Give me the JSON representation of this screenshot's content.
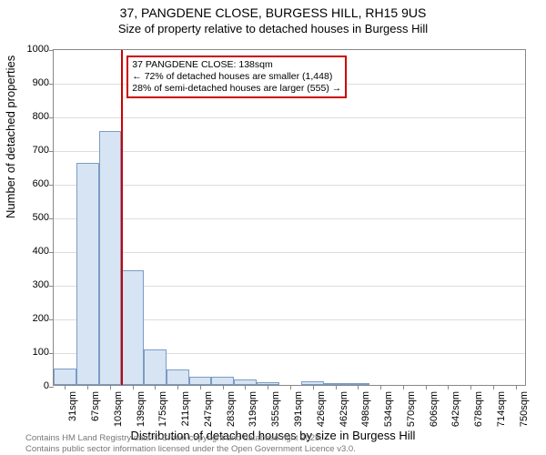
{
  "title": {
    "line1": "37, PANGDENE CLOSE, BURGESS HILL, RH15 9US",
    "line2": "Size of property relative to detached houses in Burgess Hill"
  },
  "chart": {
    "type": "histogram",
    "x_categories": [
      "31sqm",
      "67sqm",
      "103sqm",
      "139sqm",
      "175sqm",
      "211sqm",
      "247sqm",
      "283sqm",
      "319sqm",
      "355sqm",
      "391sqm",
      "426sqm",
      "462sqm",
      "498sqm",
      "534sqm",
      "570sqm",
      "606sqm",
      "642sqm",
      "678sqm",
      "714sqm",
      "750sqm"
    ],
    "bar_values": [
      50,
      660,
      755,
      340,
      105,
      45,
      25,
      25,
      15,
      8,
      0,
      10,
      3,
      5,
      0,
      0,
      2,
      0,
      0,
      0,
      0
    ],
    "y_ticks": [
      0,
      100,
      200,
      300,
      400,
      500,
      600,
      700,
      800,
      900,
      1000
    ],
    "ylim": [
      0,
      1000
    ],
    "bar_fill": "#d7e4f4",
    "bar_stroke": "#7a9cc6",
    "grid_color": "#dddddd",
    "axis_color": "#888888",
    "background_color": "#ffffff",
    "bar_width_ratio": 1.0,
    "y_label": "Number of detached properties",
    "x_label": "Distribution of detached houses by size in Burgess Hill",
    "label_fontsize": 13,
    "tick_fontsize": 11,
    "marker": {
      "position_between_index": 2,
      "color": "#cc0000",
      "annotation_title": "37 PANGDENE CLOSE: 138sqm",
      "annotation_line1": "← 72% of detached houses are smaller (1,448)",
      "annotation_line2": "28% of semi-detached houses are larger (555) →"
    }
  },
  "footer": {
    "line1": "Contains HM Land Registry data © Crown copyright and database right 2025.",
    "line2": "Contains public sector information licensed under the Open Government Licence v3.0."
  }
}
